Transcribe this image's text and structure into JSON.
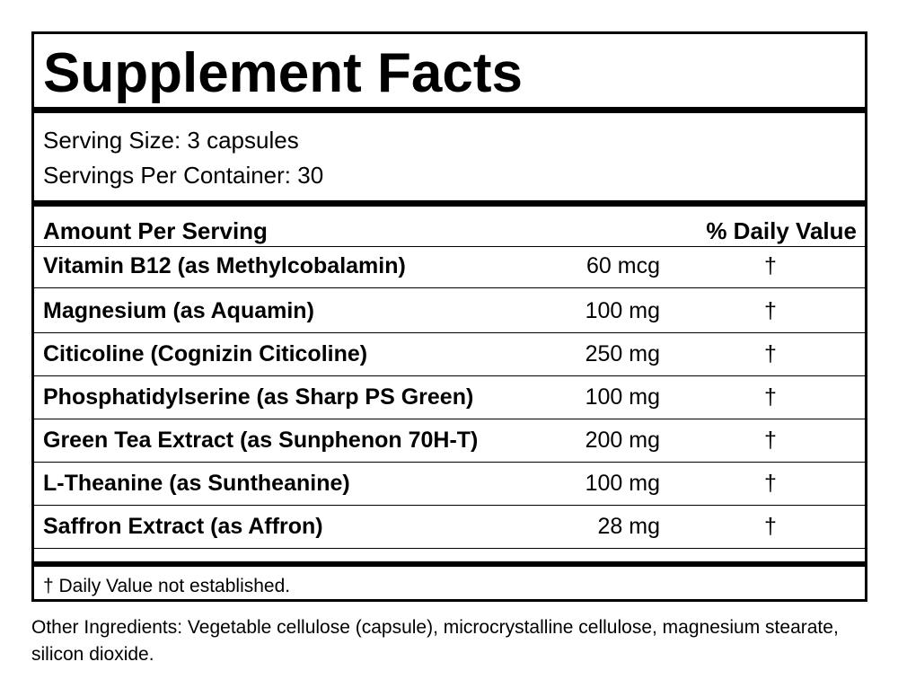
{
  "header": {
    "title": "Supplement Facts"
  },
  "serving": {
    "size": "Serving Size: 3 capsules",
    "per_container": "Servings Per Container: 30"
  },
  "table": {
    "headers": [
      "Amount Per Serving",
      "% Daily Value"
    ],
    "rows": [
      [
        "Vitamin B12 (as Methylcobalamin)",
        "60 mcg",
        "†"
      ],
      [
        "Magnesium (as Aquamin)",
        "100 mg",
        "†"
      ],
      [
        "Citicoline (Cognizin Citicoline)",
        "250 mg",
        "†"
      ],
      [
        "Phosphatidylserine (as Sharp PS Green)",
        "100 mg",
        "†"
      ],
      [
        "Green Tea Extract (as Sunphenon 70H-T)",
        "200 mg",
        "†"
      ],
      [
        "L-Theanine (as Suntheanine)",
        "100 mg",
        "†"
      ],
      [
        "Saffron Extract (as Affron)",
        "28 mg",
        "†"
      ]
    ]
  },
  "footnote": "† Daily Value not established.",
  "other_ingredients": "Other Ingredients: Vegetable cellulose (capsule), microcrystalline cellulose, magnesium stearate, silicon dioxide."
}
